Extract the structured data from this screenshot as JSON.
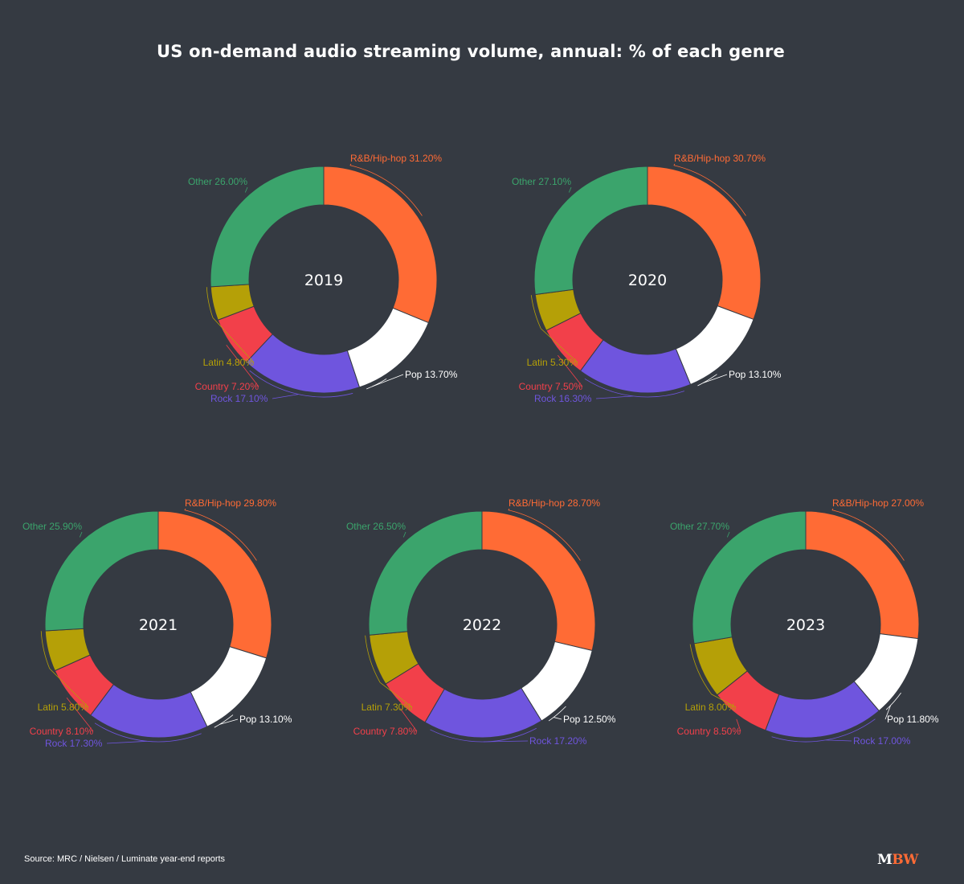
{
  "title": "US on-demand audio streaming volume, annual: % of each genre",
  "source": "Source: MRC / Nielsen / Luminate year-end reports",
  "logo": {
    "m": "M",
    "bw": "BW"
  },
  "colors": {
    "R&B/Hip-hop": "#ff6b35",
    "Pop": "#ffffff",
    "Rock": "#6f55de",
    "Country": "#f2404a",
    "Latin": "#b5a007",
    "Other": "#3ba46c",
    "background": "#353a42"
  },
  "chart_data": [
    {
      "type": "pie",
      "center_label": "2019",
      "slices": [
        {
          "label": "R&B/Hip-hop",
          "value": 31.2,
          "text": "R&B/Hip-hop 31.20%"
        },
        {
          "label": "Pop",
          "value": 13.7,
          "text": "Pop 13.70%"
        },
        {
          "label": "Rock",
          "value": 17.1,
          "text": "Rock 17.10%"
        },
        {
          "label": "Country",
          "value": 7.2,
          "text": "Country 7.20%"
        },
        {
          "label": "Latin",
          "value": 4.8,
          "text": "Latin 4.80%"
        },
        {
          "label": "Other",
          "value": 26.0,
          "text": "Other 26.00%"
        }
      ]
    },
    {
      "type": "pie",
      "center_label": "2020",
      "slices": [
        {
          "label": "R&B/Hip-hop",
          "value": 30.7,
          "text": "R&B/Hip-hop 30.70%"
        },
        {
          "label": "Pop",
          "value": 13.1,
          "text": "Pop 13.10%"
        },
        {
          "label": "Rock",
          "value": 16.3,
          "text": "Rock 16.30%"
        },
        {
          "label": "Country",
          "value": 7.5,
          "text": "Country 7.50%"
        },
        {
          "label": "Latin",
          "value": 5.3,
          "text": "Latin 5.30%"
        },
        {
          "label": "Other",
          "value": 27.1,
          "text": "Other 27.10%"
        }
      ]
    },
    {
      "type": "pie",
      "center_label": "2021",
      "slices": [
        {
          "label": "R&B/Hip-hop",
          "value": 29.8,
          "text": "R&B/Hip-hop 29.80%"
        },
        {
          "label": "Pop",
          "value": 13.1,
          "text": "Pop 13.10%"
        },
        {
          "label": "Rock",
          "value": 17.3,
          "text": "Rock 17.30%"
        },
        {
          "label": "Country",
          "value": 8.1,
          "text": "Country 8.10%"
        },
        {
          "label": "Latin",
          "value": 5.8,
          "text": "Latin 5.80%"
        },
        {
          "label": "Other",
          "value": 25.9,
          "text": "Other 25.90%"
        }
      ]
    },
    {
      "type": "pie",
      "center_label": "2022",
      "slices": [
        {
          "label": "R&B/Hip-hop",
          "value": 28.7,
          "text": "R&B/Hip-hop 28.70%"
        },
        {
          "label": "Pop",
          "value": 12.5,
          "text": "Pop 12.50%"
        },
        {
          "label": "Rock",
          "value": 17.2,
          "text": "Rock 17.20%"
        },
        {
          "label": "Country",
          "value": 7.8,
          "text": "Country 7.80%"
        },
        {
          "label": "Latin",
          "value": 7.3,
          "text": "Latin 7.30%"
        },
        {
          "label": "Other",
          "value": 26.5,
          "text": "Other 26.50%"
        }
      ]
    },
    {
      "type": "pie",
      "center_label": "2023",
      "slices": [
        {
          "label": "R&B/Hip-hop",
          "value": 27.0,
          "text": "R&B/Hip-hop 27.00%"
        },
        {
          "label": "Pop",
          "value": 11.8,
          "text": "Pop 11.80%"
        },
        {
          "label": "Rock",
          "value": 17.0,
          "text": "Rock 17.00%"
        },
        {
          "label": "Country",
          "value": 8.5,
          "text": "Country 8.50%"
        },
        {
          "label": "Latin",
          "value": 8.0,
          "text": "Latin 8.00%"
        },
        {
          "label": "Other",
          "value": 27.7,
          "text": "Other 27.70%"
        }
      ]
    }
  ]
}
